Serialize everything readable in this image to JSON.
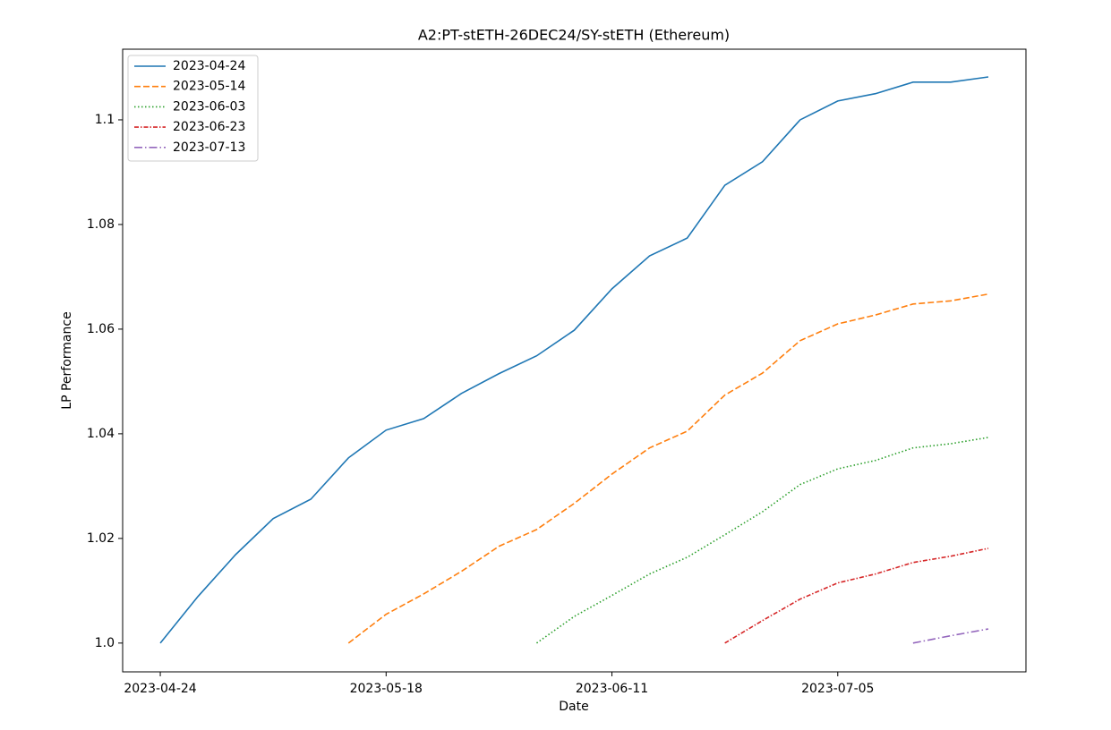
{
  "chart_data": {
    "type": "line",
    "title": "A2:PT-stETH-26DEC24/SY-stETH (Ethereum)",
    "xlabel": "Date",
    "ylabel": "LP Performance",
    "x": [
      "2023-04-24",
      "2023-04-28",
      "2023-05-02",
      "2023-05-06",
      "2023-05-10",
      "2023-05-14",
      "2023-05-18",
      "2023-05-22",
      "2023-05-26",
      "2023-05-30",
      "2023-06-03",
      "2023-06-07",
      "2023-06-11",
      "2023-06-15",
      "2023-06-19",
      "2023-06-23",
      "2023-06-27",
      "2023-07-01",
      "2023-07-05",
      "2023-07-09",
      "2023-07-13",
      "2023-07-17",
      "2023-07-21"
    ],
    "series": [
      {
        "name": "2023-04-24",
        "color": "#1f77b4",
        "linestyle": "solid",
        "values": [
          1.0,
          1.0089,
          1.0169,
          1.0238,
          1.0275,
          1.0354,
          1.0407,
          1.0429,
          1.0477,
          1.0515,
          1.0549,
          1.0598,
          1.0677,
          1.074,
          1.0774,
          1.0875,
          1.092,
          1.1,
          1.1036,
          1.105,
          1.1072,
          1.1072,
          1.1082
        ]
      },
      {
        "name": "2023-05-14",
        "color": "#ff7f0e",
        "linestyle": "dashed",
        "values": [
          null,
          null,
          null,
          null,
          null,
          1.0,
          1.0055,
          1.0094,
          1.0137,
          1.0185,
          1.0217,
          1.0267,
          1.0323,
          1.0373,
          1.0405,
          1.0474,
          1.0516,
          1.0578,
          1.061,
          1.0627,
          1.0648,
          1.0654,
          1.0667
        ]
      },
      {
        "name": "2023-06-03",
        "color": "#2ca02c",
        "linestyle": "dotted",
        "values": [
          null,
          null,
          null,
          null,
          null,
          null,
          null,
          null,
          null,
          null,
          1.0,
          1.0051,
          1.0091,
          1.0132,
          1.0164,
          1.0207,
          1.0251,
          1.0303,
          1.0333,
          1.0349,
          1.0373,
          1.0381,
          1.0393
        ]
      },
      {
        "name": "2023-06-23",
        "color": "#d62728",
        "linestyle": "densedashdot",
        "values": [
          null,
          null,
          null,
          null,
          null,
          null,
          null,
          null,
          null,
          null,
          null,
          null,
          null,
          null,
          null,
          1.0,
          1.0043,
          1.0084,
          1.0115,
          1.0132,
          1.0154,
          1.0166,
          1.0181
        ]
      },
      {
        "name": "2023-07-13",
        "color": "#9467bd",
        "linestyle": "dashdot",
        "values": [
          null,
          null,
          null,
          null,
          null,
          null,
          null,
          null,
          null,
          null,
          null,
          null,
          null,
          null,
          null,
          null,
          null,
          null,
          null,
          null,
          1.0,
          1.0014,
          1.0027
        ]
      }
    ],
    "xlim": [
      "2023-04-20",
      "2023-07-25"
    ],
    "xticks": [
      "2023-04-24",
      "2023-05-18",
      "2023-06-11",
      "2023-07-05"
    ],
    "ylim": [
      0.9945,
      1.1135
    ],
    "yticks": [
      {
        "value": 1,
        "label": "1.0"
      },
      1.02,
      1.04,
      1.06,
      1.08,
      1.1
    ],
    "grid": false,
    "legend": "upper left"
  }
}
